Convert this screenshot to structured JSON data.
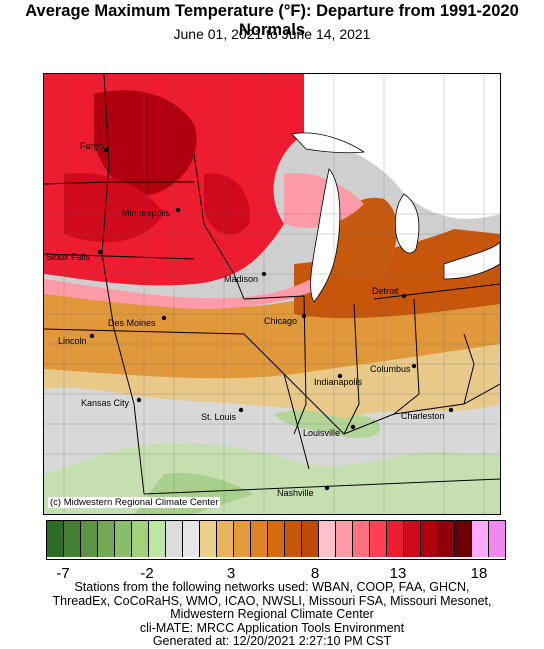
{
  "title": "Average Maximum Temperature (°F): Departure from 1991-2020 Normals",
  "subtitle": "June 01, 2021 to June 14, 2021",
  "copyright": "(c) Midwestern Regional Climate Center",
  "legend": {
    "colors": [
      "#2e6b24",
      "#457f35",
      "#5c9446",
      "#73a857",
      "#8abd69",
      "#a2d17c",
      "#bde6a0",
      "#dcdcdc",
      "#e6e6e6",
      "#ead08a",
      "#e8b55e",
      "#e29a3a",
      "#dd8225",
      "#d46a12",
      "#c8560a",
      "#bd4a08",
      "#ffc0cb",
      "#ff9aa8",
      "#ff7080",
      "#ff4055",
      "#ee1c30",
      "#d00a1c",
      "#b00010",
      "#8e000a",
      "#6a0006",
      "#ffaaff",
      "#ee88ee"
    ],
    "tick_labels": [
      "-7",
      "-2",
      "3",
      "8",
      "13",
      "18"
    ]
  },
  "cities": [
    {
      "name": "Fargo"
    },
    {
      "name": "Minneapolis"
    },
    {
      "name": "Sioux Falls"
    },
    {
      "name": "Madison"
    },
    {
      "name": "Des Moines"
    },
    {
      "name": "Chicago"
    },
    {
      "name": "Detroit"
    },
    {
      "name": "Lincoln"
    },
    {
      "name": "Indianapolis"
    },
    {
      "name": "Columbus"
    },
    {
      "name": "Kansas City"
    },
    {
      "name": "St. Louis"
    },
    {
      "name": "Charleston"
    },
    {
      "name": "Louisville"
    },
    {
      "name": "Nashville"
    }
  ],
  "footer": [
    "Stations from the following networks used: WBAN, COOP, FAA, GHCN,",
    "ThreadEx, CoCoRaHS, WMO, ICAO, NWSLI, Missouri FSA, Missouri Mesonet,",
    "Midwestern Regional Climate Center",
    "cli-MATE: MRCC Application Tools Environment",
    "Generated at: 12/20/2021 2:27:10 PM CST"
  ]
}
